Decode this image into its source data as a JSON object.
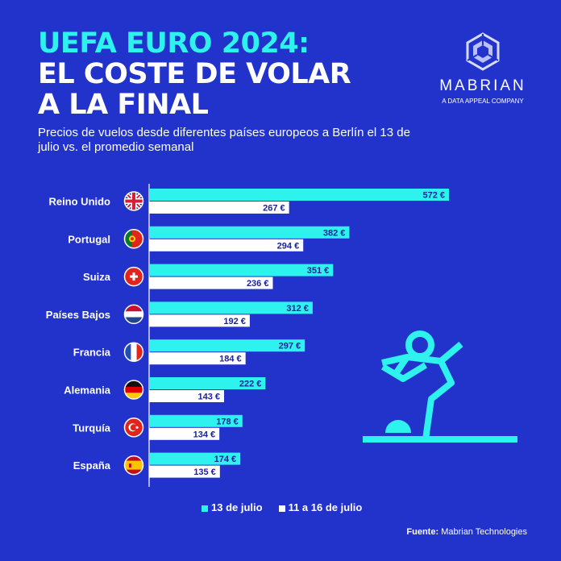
{
  "header": {
    "title_line1": "UEFA EURO 2024:",
    "title_line2": "EL COSTE DE VOLAR",
    "title_line3": "A LA FINAL",
    "subtitle": "Precios de vuelos desde diferentes países europeos a Berlín el 13 de julio vs. el promedio semanal"
  },
  "logo": {
    "name": "MABRIAN",
    "tagline": "A DATA APPEAL COMPANY"
  },
  "colors": {
    "background": "#2233cc",
    "series1": "#2ef2ee",
    "series2": "#ffffff",
    "label_text": "#1a2399"
  },
  "chart_data": {
    "type": "bar",
    "orientation": "horizontal",
    "categories": [
      "Reino Unido",
      "Portugal",
      "Suiza",
      "Países Bajos",
      "Francia",
      "Alemania",
      "Turquía",
      "España"
    ],
    "flag_icons": [
      "uk-flag-icon",
      "portugal-flag-icon",
      "switzerland-flag-icon",
      "netherlands-flag-icon",
      "france-flag-icon",
      "germany-flag-icon",
      "turkey-flag-icon",
      "spain-flag-icon"
    ],
    "series": [
      {
        "name": "13 de julio",
        "values": [
          572,
          382,
          351,
          312,
          297,
          222,
          178,
          174
        ],
        "labels": [
          "572 €",
          "382 €",
          "351 €",
          "312 €",
          "297 €",
          "222 €",
          "178 €",
          "174 €"
        ]
      },
      {
        "name": "11 a 16 de julio",
        "values": [
          267,
          294,
          236,
          192,
          184,
          143,
          134,
          135
        ],
        "labels": [
          "267 €",
          "294 €",
          "236 €",
          "192 €",
          "184 €",
          "143 €",
          "134 €",
          "135 €"
        ]
      }
    ],
    "xlim": [
      0,
      572
    ],
    "legend_position": "bottom"
  },
  "legend": {
    "item1": "13 de julio",
    "item2": "11 a 16 de julio"
  },
  "footer": {
    "source_label": "Fuente:",
    "source_value": "Mabrian Technologies"
  },
  "decoration": {
    "icon": "football-player-icon"
  }
}
